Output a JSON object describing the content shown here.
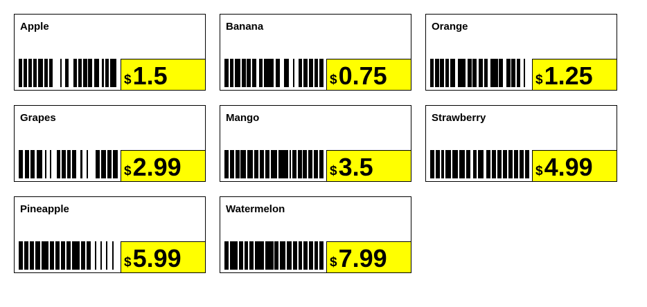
{
  "labels": [
    {
      "name": "Apple",
      "currency": "$",
      "price": "1.5",
      "pattern": "3131313141313613343131313242213151"
    },
    {
      "name": "Banana",
      "currency": "$",
      "price": "0.75",
      "pattern": "3131413131323172334313313131313"
    },
    {
      "name": "Orange",
      "currency": "$",
      "price": "1.25",
      "pattern": "31313131426231323132613331313313"
    },
    {
      "name": "Grapes",
      "currency": "$",
      "price": "2.99",
      "pattern": "3131314212142131213313153131313"
    },
    {
      "name": "Mango",
      "currency": "$",
      "price": "3.5",
      "pattern": "313131414131313151711131313131313"
    },
    {
      "name": "Strawberry",
      "currency": "$",
      "price": "4.99",
      "pattern": "313121414141323142313131313131313"
    },
    {
      "name": "Pineapple",
      "currency": "$",
      "price": "5.99",
      "pattern": "31313131513131313151313313131313"
    },
    {
      "name": "Watermelon",
      "currency": "$",
      "price": "7.99",
      "pattern": "3161313131716131414131313131313"
    }
  ],
  "colors": {
    "price_background": "#ffff00",
    "border": "#000000",
    "bar": "#000000"
  }
}
